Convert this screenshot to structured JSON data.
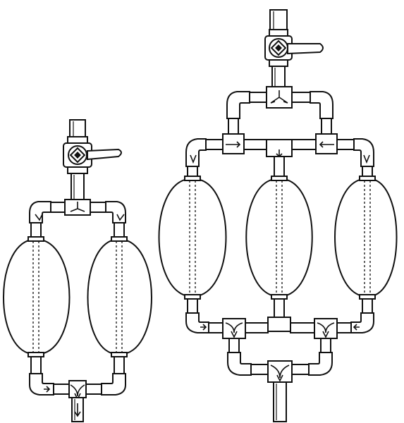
{
  "figure": {
    "background": "#ffffff",
    "ink": "#111111",
    "assemblies": [
      {
        "id": "two-bulb",
        "bulb_count": 2,
        "valve": true,
        "flow": "down"
      },
      {
        "id": "three-bulb",
        "bulb_count": 3,
        "valve": true,
        "flow": "down"
      }
    ]
  }
}
